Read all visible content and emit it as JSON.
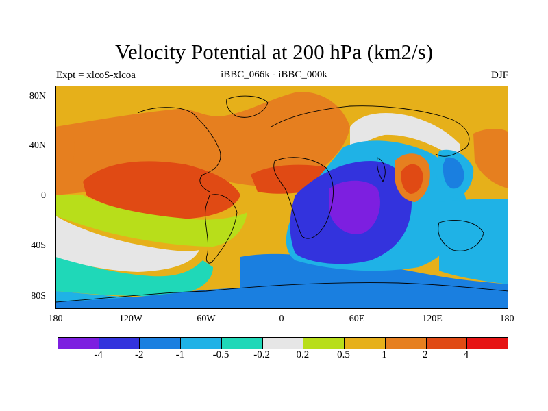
{
  "title": "Velocity Potential at 200 hPa (km2/s)",
  "experiment": "Expt = xlcoS-xlcoa",
  "subtitle": "iBBC_066k - iBBC_000k",
  "season": "DJF",
  "map": {
    "lat_labels": [
      "80N",
      "40N",
      "0",
      "40S",
      "80S"
    ],
    "lon_labels": [
      "180",
      "120W",
      "60W",
      "0",
      "60E",
      "120E",
      "180"
    ]
  },
  "colorbar": {
    "colors": [
      "#7d1fe0",
      "#3333dd",
      "#1a7fe0",
      "#1fb2e6",
      "#1fd8b8",
      "#e6e6e6",
      "#b8de1a",
      "#e6b01a",
      "#e67f1f",
      "#e04a14",
      "#e61414"
    ],
    "labels": [
      "-4",
      "-2",
      "-1",
      "-0.5",
      "-0.2",
      "0.2",
      "0.5",
      "1",
      "2",
      "4"
    ]
  }
}
